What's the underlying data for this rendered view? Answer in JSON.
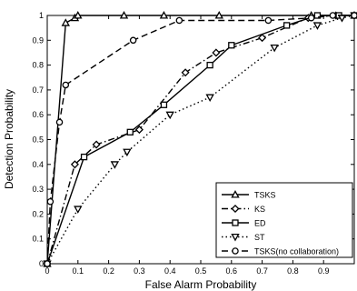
{
  "chart_data": {
    "type": "line",
    "xlabel": "False Alarm Probability",
    "ylabel": "Detection Probability",
    "xlim": [
      0,
      1
    ],
    "ylim": [
      0,
      1
    ],
    "x_ticks": [
      "0",
      "0.1",
      "0.2",
      "0.3",
      "0.4",
      "0.5",
      "0.6",
      "0.7",
      "0.8",
      "0.9"
    ],
    "y_ticks": [
      "0",
      "0.1",
      "0.2",
      "0.3",
      "0.4",
      "0.5",
      "0.6",
      "0.7",
      "0.8",
      "0.9",
      "1"
    ],
    "grid": false,
    "legend_position": "bottom-right",
    "series": [
      {
        "name": "TSKS",
        "marker": "triangle-up",
        "dash": "solid",
        "x": [
          0,
          0.06,
          0.09,
          0.1,
          0.25,
          0.38,
          0.56,
          0.86,
          1.0
        ],
        "y": [
          0,
          0.97,
          0.99,
          1.0,
          1.0,
          1.0,
          1.0,
          1.0,
          1.0
        ]
      },
      {
        "name": "KS",
        "marker": "diamond",
        "dash": "dashdot",
        "x": [
          0,
          0.09,
          0.16,
          0.3,
          0.45,
          0.55,
          0.7,
          0.85,
          0.94,
          1.0
        ],
        "y": [
          0,
          0.4,
          0.48,
          0.54,
          0.77,
          0.85,
          0.91,
          0.99,
          1.0,
          1.0
        ]
      },
      {
        "name": "ED",
        "marker": "square",
        "dash": "solid",
        "x": [
          0,
          0.12,
          0.27,
          0.38,
          0.53,
          0.6,
          0.78,
          0.88,
          0.95,
          1.0
        ],
        "y": [
          0,
          0.43,
          0.53,
          0.64,
          0.8,
          0.88,
          0.96,
          1.0,
          1.0,
          1.0
        ]
      },
      {
        "name": "ST",
        "marker": "triangle-down",
        "dash": "dotted",
        "x": [
          0,
          0.1,
          0.22,
          0.26,
          0.4,
          0.53,
          0.74,
          0.88,
          0.96,
          1.0
        ],
        "y": [
          0,
          0.22,
          0.4,
          0.45,
          0.6,
          0.67,
          0.87,
          0.96,
          0.99,
          1.0
        ]
      },
      {
        "name": "TSKS(no collaboration)",
        "marker": "circle",
        "dash": "dashed",
        "x": [
          0,
          0.01,
          0.04,
          0.06,
          0.28,
          0.43,
          0.72,
          0.86,
          0.93,
          1.0
        ],
        "y": [
          0,
          0.25,
          0.57,
          0.72,
          0.9,
          0.98,
          0.98,
          0.99,
          1.0,
          1.0
        ]
      }
    ]
  }
}
